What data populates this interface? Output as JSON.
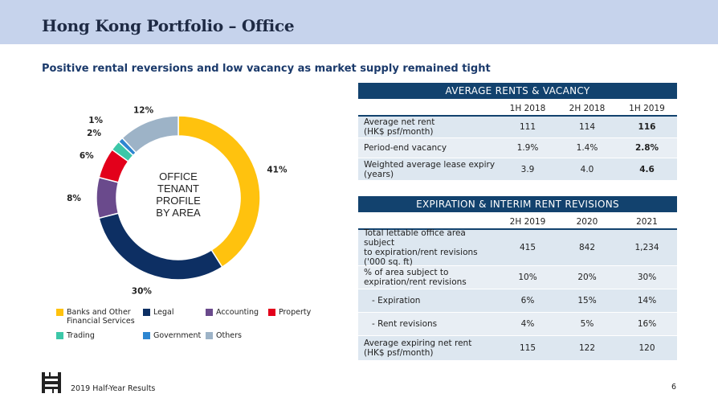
{
  "header": {
    "title": "Hong Kong Portfolio – Office"
  },
  "subtitle": "Positive rental reversions and low vacancy as market supply remained tight",
  "chart_data": {
    "type": "pie",
    "donut": true,
    "center_label": [
      "OFFICE",
      "TENANT",
      "PROFILE",
      "BY AREA"
    ],
    "slices": [
      {
        "label": "Banks and Other Financial Services",
        "value": 41,
        "display": "41%",
        "color": "#ffc20e"
      },
      {
        "label": "Legal",
        "value": 30,
        "display": "30%",
        "color": "#0d2f63"
      },
      {
        "label": "Accounting",
        "value": 8,
        "display": "8%",
        "color": "#6a4a8c"
      },
      {
        "label": "Property",
        "value": 6,
        "display": "6%",
        "color": "#e3001b"
      },
      {
        "label": "Trading",
        "value": 2,
        "display": "2%",
        "color": "#3cc7a8"
      },
      {
        "label": "Government",
        "value": 1,
        "display": "1%",
        "color": "#2d86d1"
      },
      {
        "label": "Others",
        "value": 12,
        "display": "12%",
        "color": "#9db3c7"
      }
    ]
  },
  "legend": [
    {
      "line1": "Banks and Other",
      "line2": "Financial Services",
      "color": "#ffc20e"
    },
    {
      "line1": "Legal",
      "line2": "",
      "color": "#0d2f63"
    },
    {
      "line1": "Accounting",
      "line2": "",
      "color": "#6a4a8c"
    },
    {
      "line1": "Property",
      "line2": "",
      "color": "#e3001b"
    },
    {
      "line1": "Trading",
      "line2": "",
      "color": "#3cc7a8"
    },
    {
      "line1": "Government",
      "line2": "",
      "color": "#2d86d1"
    },
    {
      "line1": "Others",
      "line2": "",
      "color": "#9db3c7"
    }
  ],
  "table1": {
    "title": "AVERAGE RENTS & VACANCY",
    "columns": [
      "1H 2018",
      "2H 2018",
      "1H 2019"
    ],
    "rows": [
      {
        "label1": "Average net rent",
        "label2": "(HK$ psf/month)",
        "values": [
          "111",
          "114",
          "116"
        ]
      },
      {
        "label1": "Period-end vacancy",
        "label2": "",
        "values": [
          "1.9%",
          "1.4%",
          "2.8%"
        ]
      },
      {
        "label1": "Weighted average lease expiry",
        "label2": "(years)",
        "values": [
          "3.9",
          "4.0",
          "4.6"
        ]
      }
    ]
  },
  "table2": {
    "title": "EXPIRATION & INTERIM RENT REVISIONS",
    "columns": [
      "2H 2019",
      "2020",
      "2021"
    ],
    "rows": [
      {
        "label1": "Total lettable office area subject",
        "label2": "to expiration/rent revisions",
        "label3": "('000 sq. ft)",
        "values": [
          "415",
          "842",
          "1,234"
        ]
      },
      {
        "label1": "% of area subject to",
        "label2": "expiration/rent revisions",
        "label3": "",
        "values": [
          "10%",
          "20%",
          "30%"
        ]
      },
      {
        "label1": "   - Expiration",
        "label2": "",
        "label3": "",
        "values": [
          "6%",
          "15%",
          "14%"
        ]
      },
      {
        "label1": "   - Rent revisions",
        "label2": "",
        "label3": "",
        "values": [
          "4%",
          "5%",
          "16%"
        ]
      },
      {
        "label1": "Average expiring net rent",
        "label2": "(HK$ psf/month)",
        "label3": "",
        "values": [
          "115",
          "122",
          "120"
        ]
      }
    ]
  },
  "footer": {
    "text": "2019 Half-Year Results",
    "page": "6",
    "logo": "hysan-logo-icon"
  }
}
